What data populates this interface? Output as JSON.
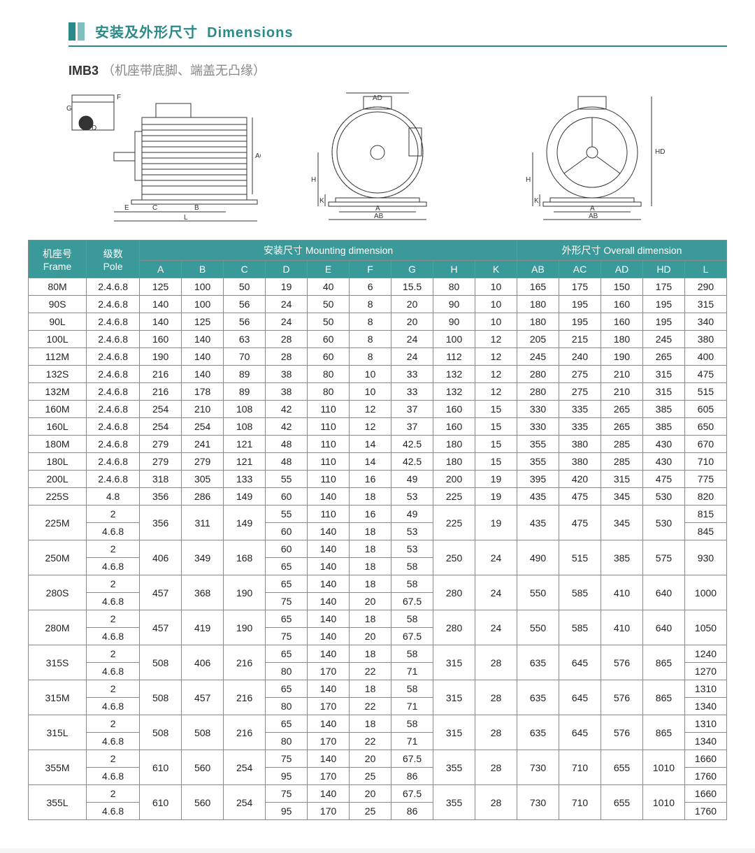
{
  "colors": {
    "teal": "#2a8a8a",
    "header_bg": "#3a9a9a",
    "title_bar1": "#2a8a8a",
    "title_bar2": "#7fbfbf",
    "border": "#888888",
    "text": "#222222",
    "page_bg": "#ffffff"
  },
  "section": {
    "title_cn": "安装及外形尺寸",
    "title_en": "Dimensions",
    "subtitle_code": "IMB3",
    "subtitle_note": "（机座带底脚、端盖无凸缘）"
  },
  "diagrams": {
    "labels_side": [
      "F",
      "G",
      "D",
      "E",
      "C",
      "B",
      "L",
      "AC"
    ],
    "labels_front": [
      "AD",
      "H",
      "K",
      "A",
      "AB"
    ],
    "labels_rear": [
      "HD",
      "H",
      "K",
      "A",
      "AB"
    ]
  },
  "table": {
    "head": {
      "frame_cn": "机座号",
      "frame_en": "Frame",
      "pole_cn": "级数",
      "pole_en": "Pole",
      "mounting_cn": "安装尺寸",
      "mounting_en": "Mounting dimension",
      "overall_cn": "外形尺寸",
      "overall_en": "Overall dimension",
      "mounting_cols": [
        "A",
        "B",
        "C",
        "D",
        "E",
        "F",
        "G",
        "H",
        "K"
      ],
      "overall_cols": [
        "AB",
        "AC",
        "AD",
        "HD",
        "L"
      ]
    },
    "simple_rows": [
      {
        "frame": "80M",
        "pole": "2.4.6.8",
        "m": [
          125,
          100,
          50,
          19,
          40,
          6,
          15.5,
          80,
          10
        ],
        "o": [
          165,
          175,
          150,
          175,
          290
        ]
      },
      {
        "frame": "90S",
        "pole": "2.4.6.8",
        "m": [
          140,
          100,
          56,
          24,
          50,
          8,
          20,
          90,
          10
        ],
        "o": [
          180,
          195,
          160,
          195,
          315
        ]
      },
      {
        "frame": "90L",
        "pole": "2.4.6.8",
        "m": [
          140,
          125,
          56,
          24,
          50,
          8,
          20,
          90,
          10
        ],
        "o": [
          180,
          195,
          160,
          195,
          340
        ]
      },
      {
        "frame": "100L",
        "pole": "2.4.6.8",
        "m": [
          160,
          140,
          63,
          28,
          60,
          8,
          24,
          100,
          12
        ],
        "o": [
          205,
          215,
          180,
          245,
          380
        ]
      },
      {
        "frame": "112M",
        "pole": "2.4.6.8",
        "m": [
          190,
          140,
          70,
          28,
          60,
          8,
          24,
          112,
          12
        ],
        "o": [
          245,
          240,
          190,
          265,
          400
        ]
      },
      {
        "frame": "132S",
        "pole": "2.4.6.8",
        "m": [
          216,
          140,
          89,
          38,
          80,
          10,
          33,
          132,
          12
        ],
        "o": [
          280,
          275,
          210,
          315,
          475
        ]
      },
      {
        "frame": "132M",
        "pole": "2.4.6.8",
        "m": [
          216,
          178,
          89,
          38,
          80,
          10,
          33,
          132,
          12
        ],
        "o": [
          280,
          275,
          210,
          315,
          515
        ]
      },
      {
        "frame": "160M",
        "pole": "2.4.6.8",
        "m": [
          254,
          210,
          108,
          42,
          110,
          12,
          37,
          160,
          15
        ],
        "o": [
          330,
          335,
          265,
          385,
          605
        ]
      },
      {
        "frame": "160L",
        "pole": "2.4.6.8",
        "m": [
          254,
          254,
          108,
          42,
          110,
          12,
          37,
          160,
          15
        ],
        "o": [
          330,
          335,
          265,
          385,
          650
        ]
      },
      {
        "frame": "180M",
        "pole": "2.4.6.8",
        "m": [
          279,
          241,
          121,
          48,
          110,
          14,
          42.5,
          180,
          15
        ],
        "o": [
          355,
          380,
          285,
          430,
          670
        ]
      },
      {
        "frame": "180L",
        "pole": "2.4.6.8",
        "m": [
          279,
          279,
          121,
          48,
          110,
          14,
          42.5,
          180,
          15
        ],
        "o": [
          355,
          380,
          285,
          430,
          710
        ]
      },
      {
        "frame": "200L",
        "pole": "2.4.6.8",
        "m": [
          318,
          305,
          133,
          55,
          110,
          16,
          49,
          200,
          19
        ],
        "o": [
          395,
          420,
          315,
          475,
          775
        ]
      },
      {
        "frame": "225S",
        "pole": "4.8",
        "m": [
          356,
          286,
          149,
          60,
          140,
          18,
          53,
          225,
          19
        ],
        "o": [
          435,
          475,
          345,
          530,
          820
        ]
      }
    ],
    "merged_rows": [
      {
        "frame": "225M",
        "abc": [
          356,
          311,
          149
        ],
        "poles": [
          {
            "p": "2",
            "defg": [
              55,
              110,
              16,
              49
            ]
          },
          {
            "p": "4.6.8",
            "defg": [
              60,
              140,
              18,
              53
            ]
          }
        ],
        "hk": [
          225,
          19
        ],
        "o4": [
          435,
          475,
          345,
          530
        ],
        "L": [
          815,
          845
        ]
      },
      {
        "frame": "250M",
        "abc": [
          406,
          349,
          168
        ],
        "poles": [
          {
            "p": "2",
            "defg": [
              60,
              140,
              18,
              53
            ]
          },
          {
            "p": "4.6.8",
            "defg": [
              65,
              140,
              18,
              58
            ]
          }
        ],
        "hk": [
          250,
          24
        ],
        "o4": [
          490,
          515,
          385,
          575
        ],
        "L": [
          930,
          930
        ],
        "L_merged": true
      },
      {
        "frame": "280S",
        "abc": [
          457,
          368,
          190
        ],
        "poles": [
          {
            "p": "2",
            "defg": [
              65,
              140,
              18,
              58
            ]
          },
          {
            "p": "4.6.8",
            "defg": [
              75,
              140,
              20,
              67.5
            ]
          }
        ],
        "hk": [
          280,
          24
        ],
        "o4": [
          550,
          585,
          410,
          640
        ],
        "L": [
          1000,
          1000
        ],
        "L_merged": true
      },
      {
        "frame": "280M",
        "abc": [
          457,
          419,
          190
        ],
        "poles": [
          {
            "p": "2",
            "defg": [
              65,
              140,
              18,
              58
            ]
          },
          {
            "p": "4.6.8",
            "defg": [
              75,
              140,
              20,
              67.5
            ]
          }
        ],
        "hk": [
          280,
          24
        ],
        "o4": [
          550,
          585,
          410,
          640
        ],
        "L": [
          1050,
          1050
        ],
        "L_merged": true
      },
      {
        "frame": "315S",
        "abc": [
          508,
          406,
          216
        ],
        "poles": [
          {
            "p": "2",
            "defg": [
              65,
              140,
              18,
              58
            ]
          },
          {
            "p": "4.6.8",
            "defg": [
              80,
              170,
              22,
              71
            ]
          }
        ],
        "hk": [
          315,
          28
        ],
        "o4": [
          635,
          645,
          576,
          865
        ],
        "L": [
          1240,
          1270
        ]
      },
      {
        "frame": "315M",
        "abc": [
          508,
          457,
          216
        ],
        "poles": [
          {
            "p": "2",
            "defg": [
              65,
              140,
              18,
              58
            ]
          },
          {
            "p": "4.6.8",
            "defg": [
              80,
              170,
              22,
              71
            ]
          }
        ],
        "hk": [
          315,
          28
        ],
        "o4": [
          635,
          645,
          576,
          865
        ],
        "L": [
          1310,
          1340
        ]
      },
      {
        "frame": "315L",
        "abc": [
          508,
          508,
          216
        ],
        "poles": [
          {
            "p": "2",
            "defg": [
              65,
              140,
              18,
              58
            ]
          },
          {
            "p": "4.6.8",
            "defg": [
              80,
              170,
              22,
              71
            ]
          }
        ],
        "hk": [
          315,
          28
        ],
        "o4": [
          635,
          645,
          576,
          865
        ],
        "L": [
          1310,
          1340
        ]
      },
      {
        "frame": "355M",
        "abc": [
          610,
          560,
          254
        ],
        "poles": [
          {
            "p": "2",
            "defg": [
              75,
              140,
              20,
              67.5
            ]
          },
          {
            "p": "4.6.8",
            "defg": [
              95,
              170,
              25,
              86
            ]
          }
        ],
        "hk": [
          355,
          28
        ],
        "o4": [
          730,
          710,
          655,
          1010
        ],
        "L": [
          1660,
          1760
        ]
      },
      {
        "frame": "355L",
        "abc": [
          610,
          560,
          254
        ],
        "poles": [
          {
            "p": "2",
            "defg": [
              75,
              140,
              20,
              67.5
            ]
          },
          {
            "p": "4.6.8",
            "defg": [
              95,
              170,
              25,
              86
            ]
          }
        ],
        "hk": [
          355,
          28
        ],
        "o4": [
          730,
          710,
          655,
          1010
        ],
        "L": [
          1660,
          1760
        ]
      }
    ]
  }
}
